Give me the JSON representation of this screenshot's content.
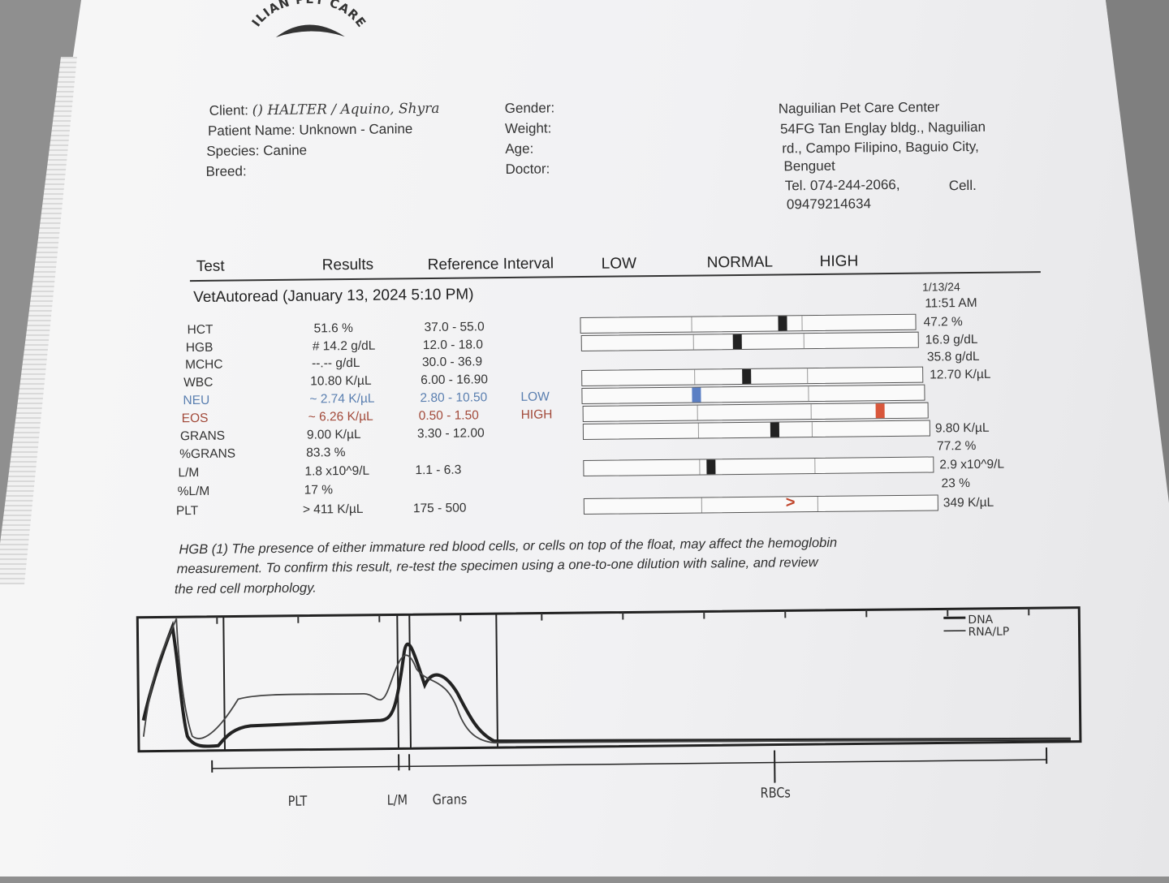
{
  "header": {
    "logo_text": "ILIAN PET CARE CE",
    "client_label": "Client:",
    "client_value": "() HALTER / Aquino, Shyra",
    "patient_label": "Patient Name:",
    "patient_value": "Unknown - Canine",
    "species_label": "Species:",
    "species_value": "Canine",
    "breed_label": "Breed:",
    "gender_label": "Gender:",
    "weight_label": "Weight:",
    "age_label": "Age:",
    "doctor_label": "Doctor:",
    "clinic_name": "Naguilian Pet Care Center",
    "address_1": "54FG Tan Englay bldg., Naguilian",
    "address_2": "rd., Campo Filipino, Baguio City,",
    "address_3": "Benguet",
    "tel": "Tel. 074-244-2066,",
    "cell_label": "Cell.",
    "cell_number": "09479214634"
  },
  "table": {
    "col_test": "Test",
    "col_results": "Results",
    "col_reference": "Reference Interval",
    "col_low": "LOW",
    "col_normal": "NORMAL",
    "col_high": "HIGH",
    "section_title": "VetAutoread (January 13, 2024 5:10 PM)",
    "prev_date": "1/13/24",
    "prev_time": "11:51 AM",
    "rows": [
      {
        "test": "HCT",
        "result": "51.6 %",
        "ref": "37.0 - 55.0",
        "flag": "",
        "prev": "47.2 %",
        "level": 0.59
      },
      {
        "test": "HGB",
        "result": "# 14.2 g/dL",
        "ref": "12.0 - 18.0",
        "flag": "",
        "prev": "16.9 g/dL",
        "level": 0.45
      },
      {
        "test": "MCHC",
        "result": "--.-- g/dL",
        "ref": "30.0 - 36.9",
        "flag": "",
        "prev": "35.8 g/dL"
      },
      {
        "test": "WBC",
        "result": "10.80 K/µL",
        "ref": "6.00 - 16.90",
        "flag": "",
        "prev": "12.70 K/µL",
        "level": 0.47
      },
      {
        "test": "NEU",
        "result": "~ 2.74 K/µL",
        "ref": "2.80 - 10.50",
        "flag": "LOW",
        "prev": "",
        "level": 0.32
      },
      {
        "test": "EOS",
        "result": "~ 6.26 K/µL",
        "ref": "0.50 - 1.50",
        "flag": "HIGH",
        "prev": "",
        "level": 0.85
      },
      {
        "test": "GRANS",
        "result": "9.00 K/µL",
        "ref": "3.30 - 12.00",
        "flag": "",
        "prev": "9.80 K/µL",
        "level": 0.54
      },
      {
        "test": "%GRANS",
        "result": "83.3 %",
        "ref": "",
        "flag": "",
        "prev": "77.2 %"
      },
      {
        "test": "L/M",
        "result": "1.8 x10^9/L",
        "ref": "1.1 - 6.3",
        "flag": "",
        "prev": "2.9 x10^9/L",
        "level": 0.35
      },
      {
        "test": "%L/M",
        "result": "17 %",
        "ref": "",
        "flag": "",
        "prev": "23 %"
      },
      {
        "test": "PLT",
        "result": "> 411 K/µL",
        "ref": "175 - 500",
        "flag": "",
        "prev": "349 K/µL",
        "level": 0.57
      }
    ]
  },
  "footnote": {
    "line1": "HGB (1)  The presence of either immature red blood cells, or cells on top of  the float, may affect the hemoglobin",
    "line2": "measurement.  To confirm this  result, re-test the specimen using a one-to-one dilution with saline,  and review",
    "line3": "the red cell morphology."
  },
  "chart_data": {
    "type": "line",
    "legend": [
      "DNA",
      "RNA/LP"
    ],
    "x_regions": [
      "PLT",
      "L/M",
      "Grans",
      "RBCs"
    ],
    "series": [
      {
        "name": "DNA"
      },
      {
        "name": "RNA/LP"
      }
    ]
  }
}
